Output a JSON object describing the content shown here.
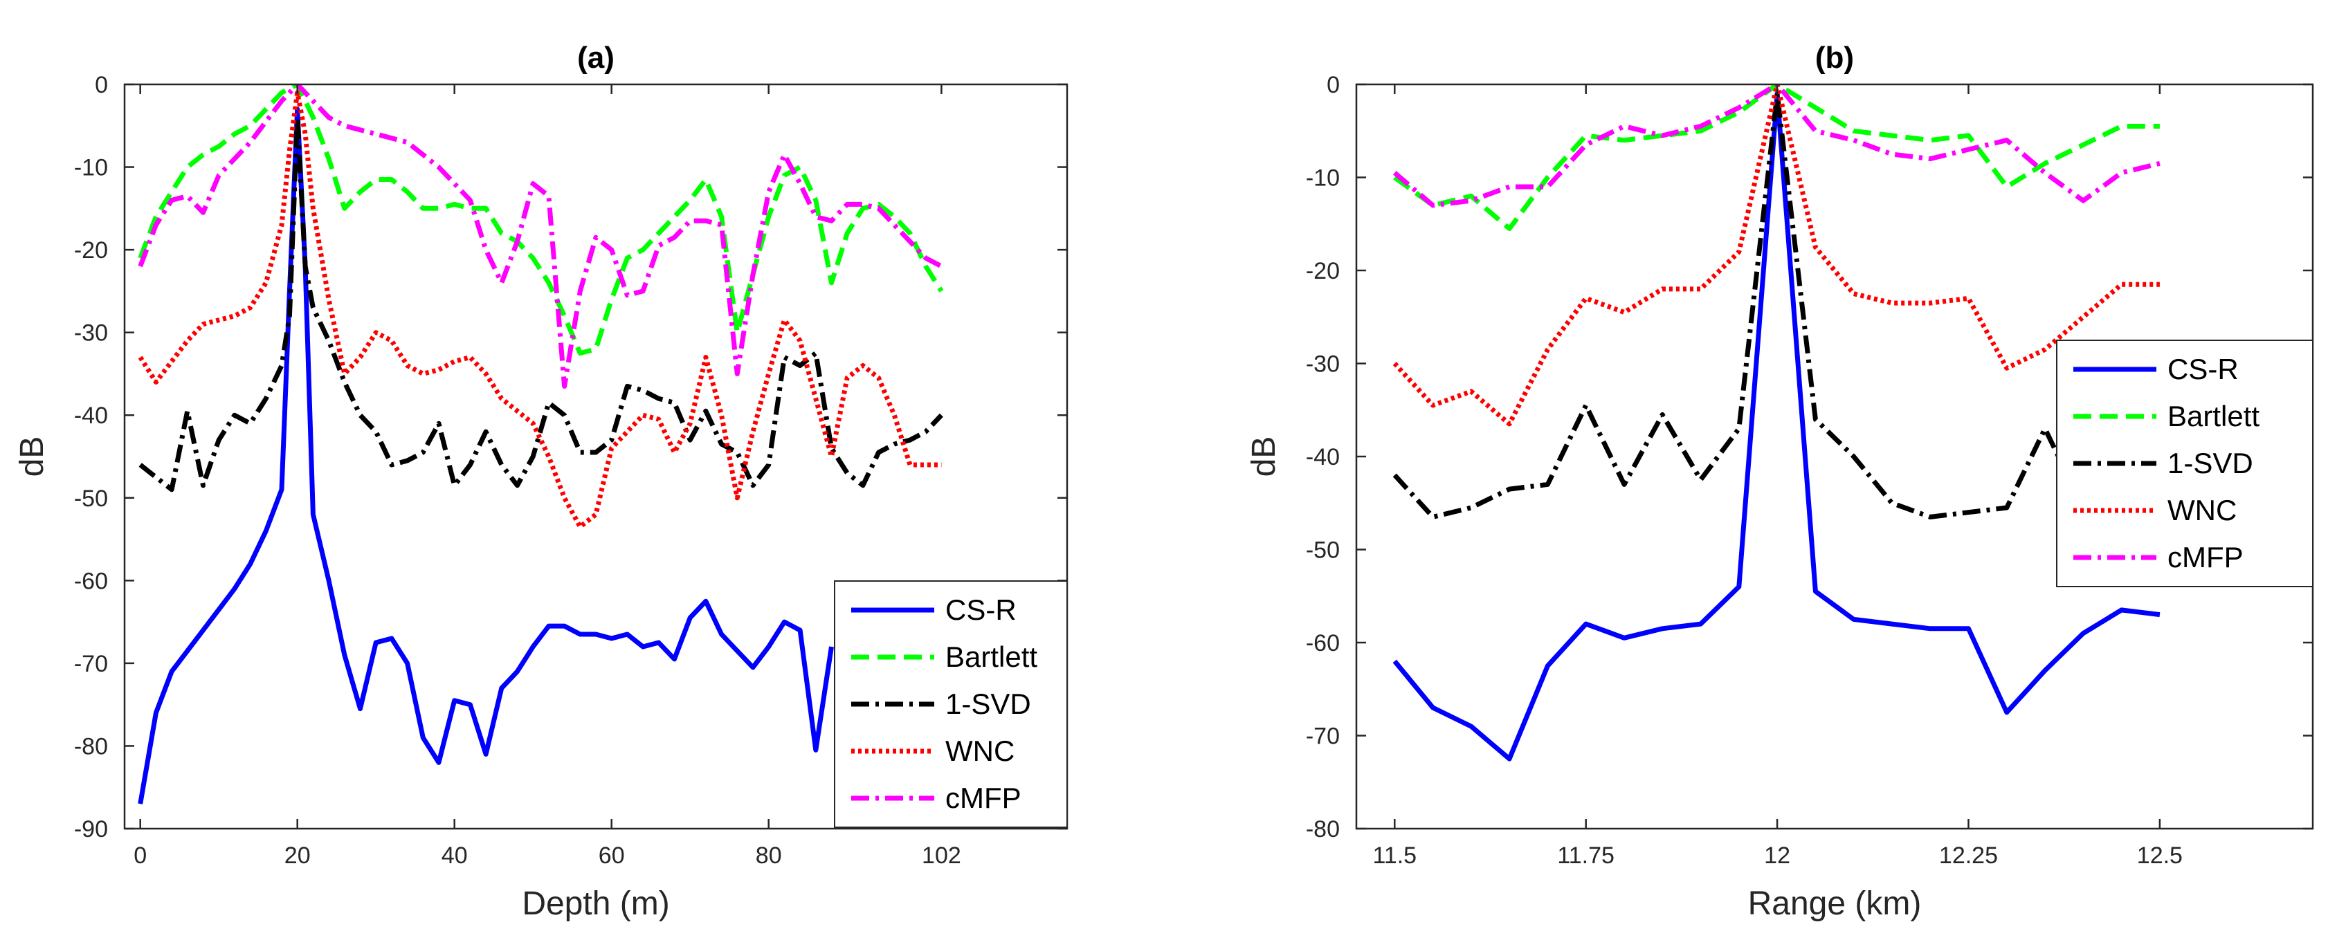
{
  "chart_data": [
    {
      "type": "line",
      "title": "(a)",
      "xlabel": "Depth (m)",
      "ylabel": "dB",
      "xlim": [
        -2,
        118
      ],
      "ylim": [
        -90,
        0
      ],
      "xticks": [
        0,
        20,
        40,
        60,
        80,
        102
      ],
      "yticks": [
        0,
        -10,
        -20,
        -30,
        -40,
        -50,
        -60,
        -70,
        -80,
        -90
      ],
      "legend_position": "bottom-right",
      "series": [
        {
          "name": "CS-R",
          "color": "#0000ff",
          "dash": "solid",
          "x": [
            0,
            2,
            4,
            6,
            8,
            10,
            12,
            14,
            16,
            18,
            19,
            20,
            21,
            22,
            24,
            26,
            28,
            30,
            32,
            34,
            36,
            38,
            40,
            42,
            44,
            46,
            48,
            50,
            52,
            54,
            56,
            58,
            60,
            62,
            64,
            66,
            68,
            70,
            72,
            74,
            76,
            78,
            80,
            82,
            84,
            86,
            88
          ],
          "y": [
            -87,
            -76,
            -71,
            -68.5,
            -66,
            -63.5,
            -61,
            -58,
            -54,
            -49,
            -25,
            -3,
            -22,
            -52,
            -60,
            -69,
            -75.5,
            -67.5,
            -67,
            -70,
            -79,
            -82,
            -74.5,
            -75,
            -81,
            -73,
            -71,
            -68,
            -65.5,
            -65.5,
            -66.5,
            -66.5,
            -67,
            -66.5,
            -68,
            -67.5,
            -69.5,
            -64.5,
            -62.5,
            -66.5,
            -68.5,
            -70.5,
            -68,
            -65,
            -66,
            -80.5,
            -68
          ]
        },
        {
          "name": "Bartlett",
          "color": "#00ff00",
          "dash": "dashed",
          "x": [
            0,
            2,
            4,
            6,
            8,
            10,
            12,
            14,
            16,
            18,
            20,
            22,
            24,
            26,
            28,
            30,
            32,
            34,
            36,
            38,
            40,
            42,
            44,
            46,
            48,
            50,
            52,
            54,
            56,
            58,
            60,
            62,
            64,
            66,
            68,
            70,
            72,
            74,
            76,
            78,
            80,
            82,
            84,
            86,
            88,
            90,
            92,
            94,
            96,
            98,
            100,
            102
          ],
          "y": [
            -21,
            -16,
            -13,
            -10,
            -8.5,
            -7.5,
            -6,
            -5,
            -3,
            -1,
            0,
            -4,
            -9,
            -15,
            -13,
            -11.5,
            -11.5,
            -13,
            -15,
            -15,
            -14.5,
            -15,
            -15,
            -18,
            -19,
            -21,
            -24,
            -28,
            -32.5,
            -32,
            -26,
            -21,
            -20,
            -18,
            -16,
            -14,
            -11.5,
            -16,
            -30,
            -23,
            -16,
            -11,
            -10,
            -14,
            -24,
            -18,
            -15,
            -14.5,
            -16,
            -18,
            -22,
            -25
          ]
        },
        {
          "name": "1-SVD",
          "color": "#000000",
          "dash": "dashdot",
          "x": [
            0,
            2,
            4,
            6,
            8,
            10,
            12,
            14,
            16,
            18,
            19,
            20,
            21,
            22,
            24,
            26,
            28,
            30,
            32,
            34,
            36,
            38,
            40,
            42,
            44,
            46,
            48,
            50,
            52,
            54,
            56,
            58,
            60,
            62,
            64,
            66,
            68,
            70,
            72,
            74,
            76,
            78,
            80,
            82,
            84,
            86,
            88,
            90,
            92,
            94,
            96,
            98,
            100,
            102
          ],
          "y": [
            -46,
            -47.5,
            -49,
            -39.5,
            -48.5,
            -43,
            -40,
            -41,
            -38,
            -34,
            -28,
            -4,
            -22,
            -27,
            -31,
            -36,
            -40,
            -42,
            -46,
            -45.5,
            -44.5,
            -41,
            -48.5,
            -46,
            -42,
            -46,
            -48.5,
            -45,
            -38.5,
            -40,
            -44.5,
            -44.5,
            -43,
            -36.5,
            -37,
            -38,
            -38.5,
            -43,
            -39.5,
            -43.5,
            -44.5,
            -48.5,
            -46,
            -33,
            -34,
            -32.5,
            -44,
            -47,
            -48.5,
            -44.5,
            -43.5,
            -43,
            -42,
            -40
          ]
        },
        {
          "name": "WNC",
          "color": "#ff0000",
          "dash": "dotted",
          "x": [
            0,
            2,
            4,
            6,
            8,
            10,
            12,
            14,
            16,
            18,
            19,
            20,
            21,
            22,
            24,
            26,
            28,
            30,
            32,
            34,
            36,
            38,
            40,
            42,
            44,
            46,
            48,
            50,
            52,
            54,
            56,
            58,
            60,
            62,
            64,
            66,
            68,
            70,
            72,
            74,
            76,
            78,
            80,
            82,
            84,
            86,
            88,
            90,
            92,
            94,
            96,
            98,
            100,
            102
          ],
          "y": [
            -33,
            -36,
            -33.5,
            -31,
            -29,
            -28.5,
            -28,
            -27,
            -24,
            -17,
            -8,
            -1,
            -6,
            -15,
            -26,
            -35,
            -33,
            -30,
            -31,
            -34,
            -35,
            -34.5,
            -33.5,
            -33,
            -35,
            -38,
            -39.5,
            -41,
            -45,
            -50,
            -53.5,
            -52,
            -44,
            -42,
            -40,
            -40.5,
            -44.5,
            -41,
            -33,
            -40,
            -50,
            -42,
            -35,
            -28.5,
            -31,
            -38,
            -45,
            -35.5,
            -34,
            -35.5,
            -40,
            -46,
            -46,
            -46
          ]
        },
        {
          "name": "cMFP",
          "color": "#ff00ff",
          "dash": "dashdot",
          "x": [
            0,
            2,
            4,
            6,
            8,
            10,
            12,
            14,
            16,
            18,
            20,
            22,
            24,
            26,
            28,
            30,
            32,
            34,
            36,
            38,
            40,
            42,
            44,
            46,
            48,
            50,
            52,
            54,
            56,
            58,
            60,
            62,
            64,
            66,
            68,
            70,
            72,
            74,
            76,
            78,
            80,
            82,
            84,
            86,
            88,
            90,
            92,
            94,
            96,
            98,
            100,
            102
          ],
          "y": [
            -22,
            -17,
            -14,
            -13.5,
            -15.5,
            -11,
            -9,
            -7,
            -4.5,
            -2,
            0,
            -2,
            -4,
            -5,
            -5.5,
            -6,
            -6.5,
            -7,
            -8.5,
            -10,
            -12,
            -14,
            -20,
            -24,
            -19,
            -12,
            -13.5,
            -36.5,
            -25,
            -18.5,
            -20,
            -25.5,
            -25,
            -19.5,
            -18.5,
            -16.5,
            -16.5,
            -17,
            -35,
            -23,
            -13,
            -8.5,
            -12,
            -16,
            -16.5,
            -14.5,
            -14.5,
            -15,
            -17,
            -19,
            -21,
            -22
          ]
        }
      ]
    },
    {
      "type": "line",
      "title": "(b)",
      "xlabel": "Range (km)",
      "ylabel": "dB",
      "xlim": [
        11.45,
        12.7
      ],
      "ylim": [
        -80,
        0
      ],
      "xticks": [
        11.5,
        11.75,
        12,
        12.25,
        12.5
      ],
      "xtick_labels": [
        "11.5",
        "11.75",
        "12",
        "12.25",
        "12.5"
      ],
      "yticks": [
        0,
        -10,
        -20,
        -30,
        -40,
        -50,
        -60,
        -70,
        -80
      ],
      "legend_position": "top-right",
      "series": [
        {
          "name": "CS-R",
          "color": "#0000ff",
          "dash": "solid",
          "x": [
            11.5,
            11.55,
            11.6,
            11.65,
            11.7,
            11.75,
            11.8,
            11.85,
            11.9,
            11.95,
            12,
            12.05,
            12.1,
            12.15,
            12.2,
            12.25,
            12.3,
            12.35,
            12.4,
            12.45,
            12.5
          ],
          "y": [
            -62,
            -67,
            -69,
            -72.5,
            -62.5,
            -58,
            -59.5,
            -58.5,
            -58,
            -54,
            -1,
            -54.5,
            -57.5,
            -58,
            -58.5,
            -58.5,
            -67.5,
            -63,
            -59,
            -56.5,
            -57
          ]
        },
        {
          "name": "Bartlett",
          "color": "#00ff00",
          "dash": "dashed",
          "x": [
            11.5,
            11.55,
            11.6,
            11.65,
            11.7,
            11.75,
            11.8,
            11.85,
            11.9,
            11.95,
            12,
            12.05,
            12.1,
            12.15,
            12.2,
            12.25,
            12.3,
            12.35,
            12.4,
            12.45,
            12.5
          ],
          "y": [
            -10,
            -13,
            -12,
            -15.5,
            -10,
            -5.5,
            -6,
            -5.5,
            -5,
            -3,
            0,
            -2.5,
            -5,
            -5.5,
            -6,
            -5.5,
            -11,
            -8.5,
            -6.5,
            -4.5,
            -4.5
          ]
        },
        {
          "name": "1-SVD",
          "color": "#000000",
          "dash": "dashdot",
          "x": [
            11.5,
            11.55,
            11.6,
            11.65,
            11.7,
            11.75,
            11.8,
            11.85,
            11.9,
            11.95,
            12,
            12.05,
            12.1,
            12.15,
            12.2,
            12.25,
            12.3,
            12.35,
            12.4
          ],
          "y": [
            -42,
            -46.5,
            -45.5,
            -43.5,
            -43,
            -34.5,
            -43,
            -35.5,
            -42.5,
            -37,
            -1,
            -36,
            -40,
            -45,
            -46.5,
            -46,
            -45.5,
            -37,
            -45.5
          ]
        },
        {
          "name": "WNC",
          "color": "#ff0000",
          "dash": "dotted",
          "x": [
            11.5,
            11.55,
            11.6,
            11.65,
            11.7,
            11.75,
            11.8,
            11.85,
            11.9,
            11.95,
            12,
            12.05,
            12.1,
            12.15,
            12.2,
            12.25,
            12.3,
            12.35,
            12.4,
            12.45,
            12.5
          ],
          "y": [
            -30,
            -34.5,
            -33,
            -36.5,
            -28.5,
            -23,
            -24.5,
            -22,
            -22,
            -18,
            0,
            -17.5,
            -22.5,
            -23.5,
            -23.5,
            -23,
            -30.5,
            -28.5,
            -25,
            -21.5,
            -21.5
          ]
        },
        {
          "name": "cMFP",
          "color": "#ff00ff",
          "dash": "dashdot",
          "x": [
            11.5,
            11.55,
            11.6,
            11.65,
            11.7,
            11.75,
            11.8,
            11.85,
            11.9,
            11.95,
            12,
            12.05,
            12.1,
            12.15,
            12.2,
            12.25,
            12.3,
            12.35,
            12.4,
            12.45,
            12.5
          ],
          "y": [
            -9.5,
            -13,
            -12.5,
            -11,
            -11,
            -6.5,
            -4.5,
            -5.5,
            -4.5,
            -2.5,
            0,
            -5,
            -6,
            -7.5,
            -8,
            -7,
            -6,
            -9.5,
            -12.5,
            -9.5,
            -8.5
          ]
        }
      ]
    }
  ]
}
